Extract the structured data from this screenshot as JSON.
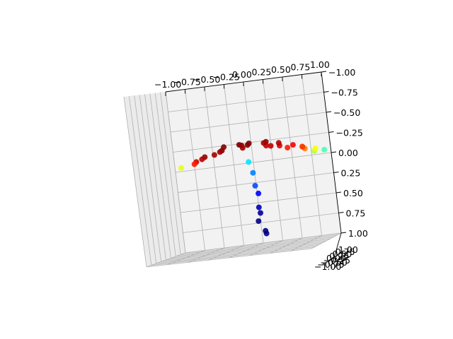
{
  "figure": {
    "background": "#ffffff",
    "pane_color": "#f2f2f2",
    "grid_color": "#b0b0b0"
  },
  "chart_data": {
    "type": "scatter3d",
    "title": "",
    "grid": true,
    "colormap": "jet",
    "axes": {
      "x": {
        "ticks": [
          -1.0,
          -0.75,
          -0.5,
          -0.25,
          0.0,
          0.25,
          0.5,
          0.75,
          1.0
        ],
        "tick_labels": [
          "−1.00",
          "−0.75",
          "−0.50",
          "−0.25",
          "0.00",
          "0.25",
          "0.50",
          "0.75",
          "1.00"
        ],
        "lim": [
          -1,
          1
        ]
      },
      "y": {
        "ticks": [
          -1.0,
          -0.75,
          -0.5,
          -0.25,
          0.0,
          0.25,
          0.5,
          0.75,
          1.0
        ],
        "tick_labels": [
          "−1.00",
          "−0.75",
          "−0.50",
          "−0.25",
          "0.00",
          "0.25",
          "0.50",
          "0.75",
          "1.00"
        ],
        "lim": [
          -1,
          1
        ]
      },
      "z": {
        "ticks": [
          -1.0,
          -0.75,
          -0.5,
          -0.25,
          0.0,
          0.25,
          0.5,
          0.75,
          1.0
        ],
        "tick_labels": [
          "−1.00",
          "−0.75",
          "−0.50",
          "−0.25",
          "0.00",
          "0.25",
          "0.50",
          "0.75",
          "1.00"
        ],
        "lim": [
          -1,
          1
        ]
      }
    },
    "series": [
      {
        "marker": "circle",
        "points": [
          [
            -0.72,
            0.05,
            0.1,
            0.92
          ],
          [
            -0.6,
            -0.2,
            0.13,
            0.95
          ],
          [
            -0.45,
            0.3,
            0.18,
            0.97
          ],
          [
            -0.3,
            -0.4,
            0.21,
            1.0
          ],
          [
            -0.15,
            0.2,
            0.23,
            0.99
          ],
          [
            0.0,
            -0.1,
            0.25,
            1.0
          ],
          [
            0.1,
            0.4,
            0.22,
            0.96
          ],
          [
            0.25,
            -0.3,
            0.2,
            0.93
          ],
          [
            0.35,
            0.1,
            0.17,
            0.9
          ],
          [
            0.5,
            -0.2,
            0.14,
            0.85
          ],
          [
            0.6,
            0.3,
            0.12,
            0.8
          ],
          [
            -0.5,
            -0.55,
            0.16,
            0.98
          ],
          [
            -0.2,
            0.55,
            0.19,
            0.97
          ],
          [
            0.15,
            0.6,
            0.17,
            0.94
          ],
          [
            0.05,
            -0.5,
            0.24,
            0.99
          ],
          [
            -0.35,
            0.05,
            0.24,
            1.0
          ],
          [
            0.45,
            0.5,
            0.15,
            0.88
          ],
          [
            0.7,
            -0.1,
            0.1,
            0.75
          ],
          [
            0.78,
            0.2,
            0.08,
            0.62
          ],
          [
            0.85,
            -0.3,
            0.06,
            0.55
          ],
          [
            0.9,
            0.15,
            0.05,
            0.45
          ],
          [
            -0.8,
            0.35,
            0.07,
            0.85
          ],
          [
            -0.85,
            -0.35,
            0.06,
            0.6
          ],
          [
            0.2,
            0.0,
            0.24,
            0.98
          ],
          [
            -0.1,
            -0.25,
            0.25,
            1.0
          ],
          [
            0.3,
            0.35,
            0.2,
            0.95
          ],
          [
            -0.55,
            0.45,
            0.15,
            0.96
          ],
          [
            0.55,
            0.6,
            0.11,
            0.82
          ],
          [
            -0.05,
            0.0,
            0.02,
            0.35
          ],
          [
            -0.02,
            0.05,
            -0.12,
            0.25
          ],
          [
            0.0,
            -0.02,
            -0.28,
            0.2
          ],
          [
            0.02,
            0.03,
            -0.38,
            0.12
          ],
          [
            0.01,
            0.0,
            -0.55,
            0.05
          ],
          [
            0.03,
            -0.05,
            -0.62,
            0.03
          ],
          [
            -0.03,
            0.08,
            -0.72,
            0.0
          ],
          [
            0.04,
            0.1,
            -0.85,
            0.0
          ],
          [
            0.08,
            -0.08,
            -0.88,
            0.02
          ]
        ]
      }
    ]
  }
}
